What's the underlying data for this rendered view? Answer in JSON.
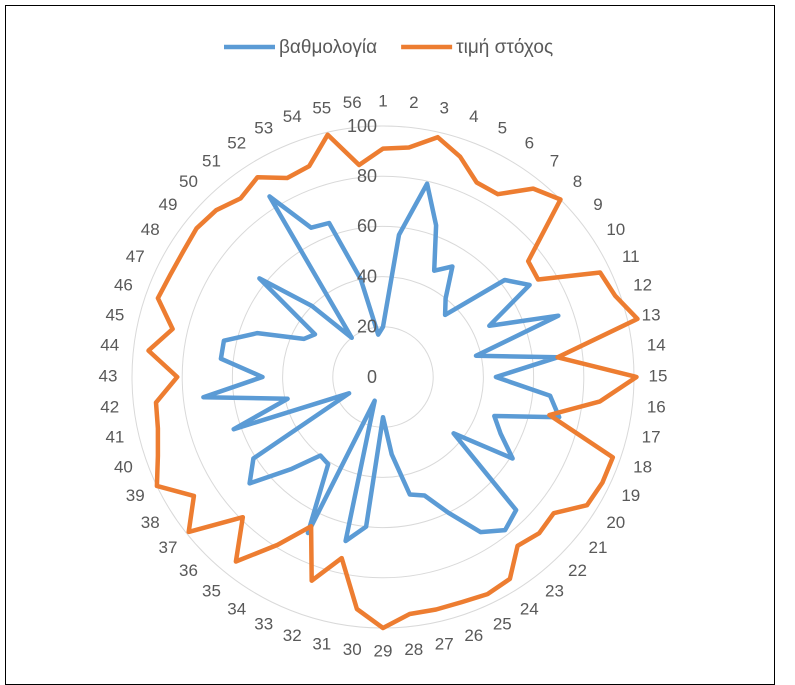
{
  "chart_data": {
    "type": "radar",
    "categories": [
      "1",
      "2",
      "3",
      "4",
      "5",
      "6",
      "7",
      "8",
      "9",
      "10",
      "11",
      "12",
      "13",
      "14",
      "15",
      "16",
      "17",
      "18",
      "19",
      "20",
      "21",
      "22",
      "23",
      "24",
      "25",
      "26",
      "27",
      "28",
      "29",
      "30",
      "31",
      "32",
      "33",
      "34",
      "35",
      "36",
      "37",
      "38",
      "39",
      "40",
      "41",
      "42",
      "43",
      "44",
      "45",
      "46",
      "47",
      "48",
      "49",
      "50",
      "51",
      "52",
      "53",
      "54",
      "55",
      "56"
    ],
    "radial_ticks": [
      "0",
      "20",
      "40",
      "60",
      "80",
      "100"
    ],
    "rlim": [
      0,
      100
    ],
    "grid": true,
    "legend_position": "top",
    "series": [
      {
        "name": "βαθμολογία",
        "color": "#5B9BD5",
        "values": [
          20,
          57,
          79,
          64,
          47,
          52,
          40,
          35,
          62,
          69,
          47,
          74,
          38,
          70,
          45,
          67,
          72,
          47,
          52,
          61,
          36,
          75,
          78,
          73,
          60,
          50,
          48,
          31,
          16,
          60,
          67,
          10,
          69,
          41,
          40,
          52,
          68,
          61,
          15,
          63,
          39,
          72,
          48,
          65,
          65,
          53,
          35,
          32,
          63,
          40,
          20,
          85,
          66,
          65,
          40,
          17
        ]
      },
      {
        "name": "τιμή στόχος",
        "color": "#ED7D31",
        "values": [
          91,
          92,
          98,
          93,
          86,
          86,
          96,
          100,
          74,
          73,
          96,
          98,
          104,
          70,
          101,
          87,
          68,
          97,
          97,
          96,
          87,
          88,
          86,
          95,
          96,
          95,
          95,
          95,
          100,
          93,
          74,
          86,
          66,
          79,
          94,
          79,
          99,
          89,
          100,
          95,
          92,
          91,
          82,
          94,
          86,
          95,
          94,
          94,
          95,
          94,
          91,
          94,
          88,
          89,
          99,
          85
        ]
      }
    ]
  }
}
